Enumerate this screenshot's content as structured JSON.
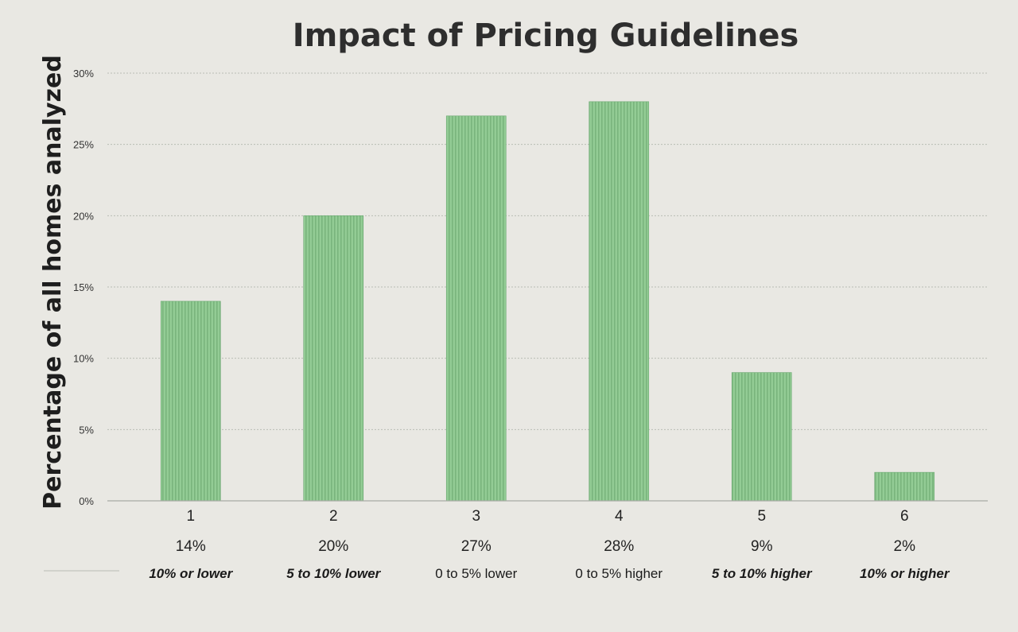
{
  "chart_data": {
    "type": "bar",
    "title": "Impact of Pricing Guidelines",
    "xlabel": "",
    "ylabel": "Percentage of all homes analyzed",
    "ylim": [
      0,
      30
    ],
    "yticks": [
      "0%",
      "5%",
      "10%",
      "15%",
      "20%",
      "25%",
      "30%"
    ],
    "ytick_values": [
      0,
      5,
      10,
      15,
      20,
      25,
      30
    ],
    "grid": true,
    "legend": "none",
    "categories": [
      "1",
      "2",
      "3",
      "4",
      "5",
      "6"
    ],
    "values": [
      14,
      20,
      27,
      28,
      9,
      2
    ],
    "value_labels": [
      "14%",
      "20%",
      "27%",
      "28%",
      "9%",
      "2%"
    ],
    "descriptions": [
      "10% or lower",
      "5 to 10% lower",
      "0 to 5% lower",
      "0 to 5% higher",
      "5 to 10% higher",
      "10% or higher"
    ],
    "description_bold": [
      true,
      true,
      false,
      false,
      true,
      true
    ],
    "bar_color": "#8fc98f"
  }
}
